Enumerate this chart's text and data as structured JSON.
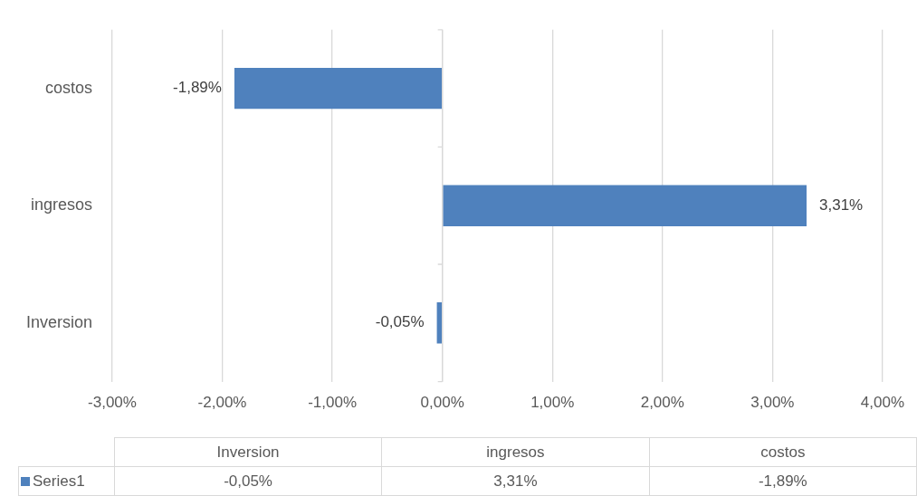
{
  "chart_data": {
    "type": "bar",
    "orientation": "horizontal",
    "categories": [
      "costos",
      "ingresos",
      "Inversion"
    ],
    "series": [
      {
        "name": "Series1",
        "color": "#4f81bd",
        "values": [
          -1.89,
          3.31,
          -0.05
        ],
        "value_labels": [
          "-1,89%",
          "3,31%",
          "-0,05%"
        ]
      }
    ],
    "xlim": [
      -3,
      4
    ],
    "xticks": [
      {
        "value": -3,
        "label": "-3,00%"
      },
      {
        "value": -2,
        "label": "-2,00%"
      },
      {
        "value": -1,
        "label": "-1,00%"
      },
      {
        "value": 0,
        "label": "0,00%"
      },
      {
        "value": 1,
        "label": "1,00%"
      },
      {
        "value": 2,
        "label": "2,00%"
      },
      {
        "value": 3,
        "label": "3,00%"
      },
      {
        "value": 4,
        "label": "4,00%"
      }
    ],
    "grid": "x",
    "legend": "bottom"
  }
}
